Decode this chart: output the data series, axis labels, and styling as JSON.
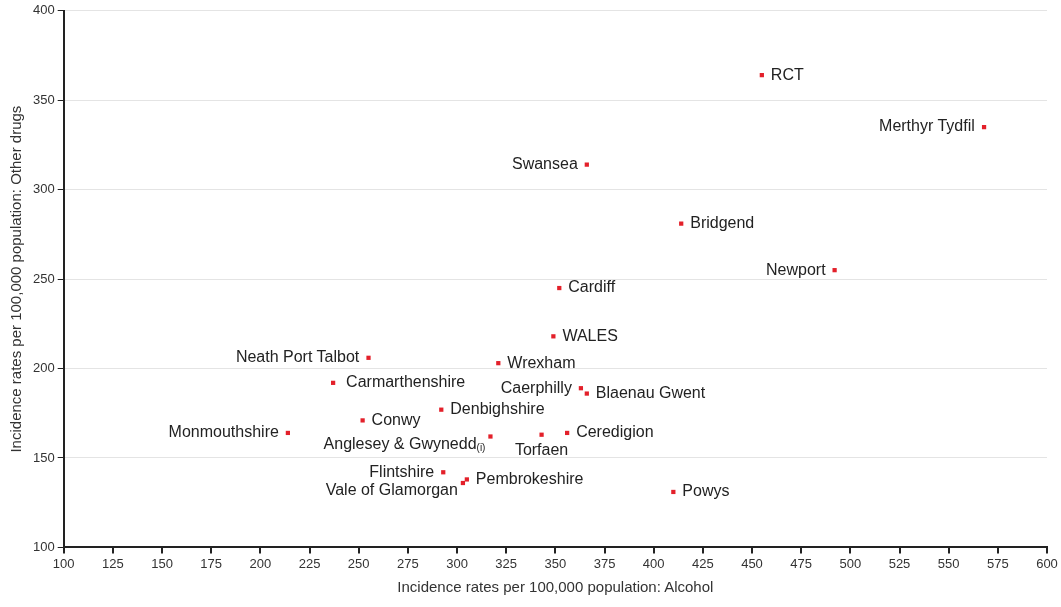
{
  "chart_data": {
    "type": "scatter",
    "xlabel": "Incidence rates per 100,000 population: Alcohol",
    "ylabel": "Incidence rates per 100,000 population: Other drugs",
    "xlim": [
      100,
      600
    ],
    "xticks": [
      100,
      125,
      150,
      175,
      200,
      225,
      250,
      275,
      300,
      325,
      350,
      375,
      400,
      425,
      450,
      475,
      500,
      525,
      550,
      575,
      600
    ],
    "ylim": [
      100,
      400
    ],
    "yticks": [
      100,
      150,
      200,
      250,
      300,
      350,
      400
    ],
    "grid": "y",
    "legend": false,
    "marker": "square",
    "series": [
      {
        "color": "#e3202a",
        "x": [
          455,
          568,
          366,
          414,
          492,
          352,
          349,
          255,
          321,
          237,
          363,
          366,
          292,
          252,
          214,
          317,
          343,
          356,
          293,
          305,
          303,
          410
        ],
        "values": [
          364,
          335,
          314,
          281,
          255,
          245,
          218,
          206,
          203,
          192,
          189,
          186,
          177,
          171,
          164,
          162,
          163,
          164,
          142,
          138,
          136,
          131
        ]
      }
    ],
    "annotations": [
      {
        "text": "RCT",
        "x": 455,
        "y": 364
      },
      {
        "text": "Merthyr Tydfil",
        "x": 568,
        "y": 335
      },
      {
        "text": "Swansea",
        "x": 366,
        "y": 314
      },
      {
        "text": "Bridgend",
        "x": 414,
        "y": 281
      },
      {
        "text": "Newport",
        "x": 492,
        "y": 255
      },
      {
        "text": "Cardiff",
        "x": 352,
        "y": 245
      },
      {
        "text": "WALES",
        "x": 349,
        "y": 218
      },
      {
        "text": "Neath Port Talbot",
        "x": 255,
        "y": 206
      },
      {
        "text": "Wrexham",
        "x": 321,
        "y": 203
      },
      {
        "text": "Carmarthenshire",
        "x": 237,
        "y": 192
      },
      {
        "text": "Caerphilly",
        "x": 363,
        "y": 189
      },
      {
        "text": "Blaenau Gwent",
        "x": 366,
        "y": 186
      },
      {
        "text": "Denbighshire",
        "x": 292,
        "y": 177
      },
      {
        "text": "Conwy",
        "x": 252,
        "y": 171
      },
      {
        "text": "Monmouthshire",
        "x": 214,
        "y": 164
      },
      {
        "text": "Anglesey & Gwynedd$_{(i)}$",
        "x": 317,
        "y": 162
      },
      {
        "text": "Torfaen",
        "x": 343,
        "y": 163
      },
      {
        "text": "Ceredigion",
        "x": 356,
        "y": 164
      },
      {
        "text": "Flintshire",
        "x": 293,
        "y": 142
      },
      {
        "text": "Pembrokeshire",
        "x": 305,
        "y": 138
      },
      {
        "text": "Vale of Glamorgan",
        "x": 303,
        "y": 136
      },
      {
        "text": "Powys",
        "x": 410,
        "y": 131
      }
    ]
  }
}
